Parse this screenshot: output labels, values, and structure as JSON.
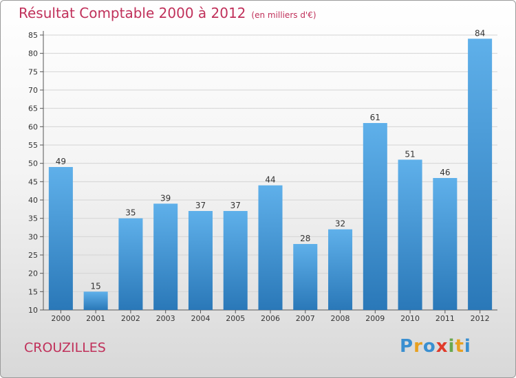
{
  "header": {
    "title": "Résultat Comptable 2000 à 2012",
    "subtitle": "(en milliers d'€)"
  },
  "footer": {
    "place": "CROUZILLES",
    "logo_text": "Proxiti",
    "logo_colors": [
      "#3a8fd0",
      "#e8a020",
      "#3a8fd0",
      "#e03a2a",
      "#6aa84f",
      "#e8a020",
      "#3a8fd0"
    ]
  },
  "colors": {
    "title": "#c0305a",
    "bar_top": "#5fb0ea",
    "bar_bottom": "#2a78b8"
  },
  "chart_data": {
    "type": "bar",
    "title": "Résultat Comptable 2000 à 2012",
    "subtitle": "(en milliers d'€)",
    "categories": [
      "2000",
      "2001",
      "2002",
      "2003",
      "2004",
      "2005",
      "2006",
      "2007",
      "2008",
      "2009",
      "2010",
      "2011",
      "2012"
    ],
    "values": [
      49,
      15,
      35,
      39,
      37,
      37,
      44,
      28,
      32,
      61,
      51,
      46,
      84
    ],
    "ylim": [
      10,
      85
    ],
    "yticks": [
      10,
      15,
      20,
      25,
      30,
      35,
      40,
      45,
      50,
      55,
      60,
      65,
      70,
      75,
      80,
      85
    ],
    "grid": true,
    "data_labels": true
  }
}
